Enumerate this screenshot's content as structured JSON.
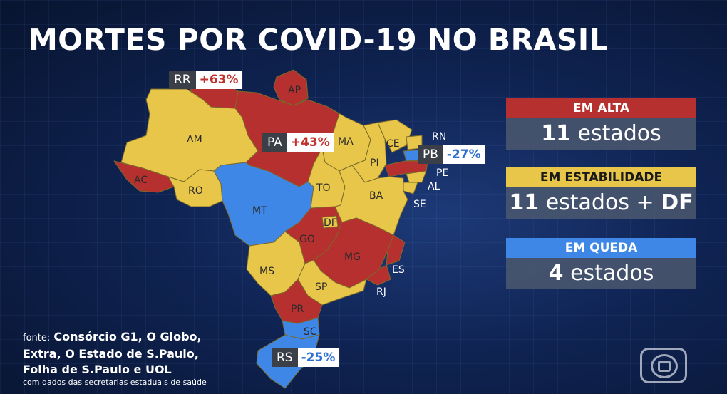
{
  "title": "MORTES POR COVID-19 NO BRASIL",
  "callouts": {
    "rr": {
      "code": "RR",
      "pct": "+63%"
    },
    "pa": {
      "code": "PA",
      "pct": "+43%"
    },
    "pb": {
      "code": "PB",
      "pct": "-27%"
    },
    "rs": {
      "code": "RS",
      "pct": "-25%"
    }
  },
  "states": {
    "ap": "AP",
    "am": "AM",
    "ac": "AC",
    "ro": "RO",
    "mt": "MT",
    "ma": "MA",
    "ce": "CE",
    "rn": "RN",
    "pi": "PI",
    "pe": "PE",
    "al": "AL",
    "to": "TO",
    "ba": "BA",
    "se": "SE",
    "df": "DF",
    "go": "GO",
    "mg": "MG",
    "es": "ES",
    "ms": "MS",
    "sp": "SP",
    "rj": "RJ",
    "pr": "PR",
    "sc": "SC"
  },
  "legend": {
    "alta": {
      "label": "EM ALTA",
      "count": "11",
      "unit": "estados",
      "color": "#b5302e"
    },
    "estab": {
      "label": "EM ESTABILIDADE",
      "count": "11",
      "unit": "estados +",
      "extra": "DF",
      "color": "#e8c64a"
    },
    "queda": {
      "label": "EM QUEDA",
      "count": "4",
      "unit": "estados",
      "color": "#3f87e6"
    }
  },
  "source": {
    "lead": "fonte:",
    "line1": "Consórcio G1, O Globo,",
    "line2": "Extra, O Estado de S.Paulo,",
    "line3": "Folha de S.Paulo e UOL",
    "note": "com dados das secretarias estaduais de saúde"
  }
}
